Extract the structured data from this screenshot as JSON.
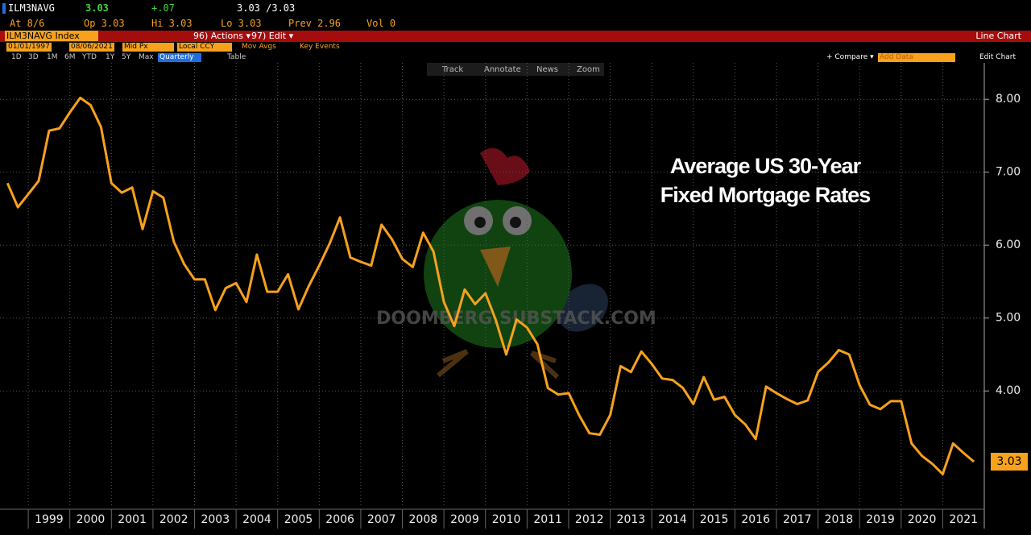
{
  "terminal": {
    "ticker": "ILM3NAVG",
    "last": "3.03",
    "change": "+.07",
    "bid_ask": "3.03 /3.03",
    "at": "At 8/6",
    "open": "Op 3.03",
    "high": "Hi 3.03",
    "low": "Lo 3.03",
    "prev": "Prev 2.96",
    "vol": "Vol 0",
    "security": "ILM3NAVG Index",
    "actions": "96) Actions ▾",
    "edit": "97) Edit ▾",
    "view": "Line Chart",
    "start_date": "01/01/1997",
    "end_date": "08/06/2021",
    "price_field": "Mid Px",
    "currency": "Local CCY",
    "mov_avgs": "Mov Avgs",
    "key_events": "Key Events",
    "ranges": [
      "1D",
      "3D",
      "1M",
      "6M",
      "YTD",
      "1Y",
      "5Y",
      "Max"
    ],
    "period": "Quarterly ▼",
    "table": "Table",
    "compare": "+ Compare ▾",
    "add_data": "Add Data",
    "edit_chart": "Edit Chart",
    "tools": [
      "Track",
      "Annotate",
      "News",
      "Zoom"
    ],
    "watermark": "DOOMBERG.SUBSTACK.COM"
  },
  "chart_data": {
    "type": "line",
    "title": [
      "Average US 30-Year",
      "Fixed Mortgage Rates"
    ],
    "color": "#f7a11c",
    "x": [
      1998.5,
      1998.75,
      1999,
      1999.25,
      1999.5,
      1999.75,
      2000,
      2000.25,
      2000.5,
      2000.75,
      2001,
      2001.25,
      2001.5,
      2001.75,
      2002,
      2002.25,
      2002.5,
      2002.75,
      2003,
      2003.25,
      2003.5,
      2003.75,
      2004,
      2004.25,
      2004.5,
      2004.75,
      2005,
      2005.25,
      2005.5,
      2005.75,
      2006,
      2006.25,
      2006.5,
      2006.75,
      2007,
      2007.25,
      2007.5,
      2007.75,
      2008,
      2008.25,
      2008.5,
      2008.75,
      2009,
      2009.25,
      2009.5,
      2009.75,
      2010,
      2010.25,
      2010.5,
      2010.75,
      2011,
      2011.25,
      2011.5,
      2011.75,
      2012,
      2012.25,
      2012.5,
      2012.75,
      2013,
      2013.25,
      2013.5,
      2013.75,
      2014,
      2014.25,
      2014.5,
      2014.75,
      2015,
      2015.25,
      2015.5,
      2015.75,
      2016,
      2016.25,
      2016.5,
      2016.75,
      2017,
      2017.25,
      2017.5,
      2017.75,
      2018,
      2018.25,
      2018.5,
      2018.75,
      2019,
      2019.25,
      2019.5,
      2019.75,
      2020,
      2020.25,
      2020.5,
      2020.75,
      2021,
      2021.25,
      2021.5,
      2021.75
    ],
    "values": [
      6.85,
      6.52,
      6.7,
      6.88,
      7.57,
      7.6,
      7.82,
      8.02,
      7.92,
      7.62,
      6.85,
      6.72,
      6.79,
      6.22,
      6.74,
      6.65,
      6.05,
      5.74,
      5.53,
      5.53,
      5.11,
      5.41,
      5.48,
      5.22,
      5.87,
      5.36,
      5.36,
      5.6,
      5.12,
      5.44,
      5.72,
      6.02,
      6.38,
      5.83,
      5.77,
      5.72,
      6.28,
      6.08,
      5.81,
      5.7,
      6.17,
      5.91,
      5.22,
      4.89,
      5.39,
      5.19,
      5.34,
      4.97,
      4.5,
      4.98,
      4.87,
      4.64,
      4.04,
      3.95,
      3.97,
      3.67,
      3.42,
      3.4,
      3.67,
      4.34,
      4.26,
      4.54,
      4.37,
      4.17,
      4.15,
      4.04,
      3.82,
      4.19,
      3.88,
      3.92,
      3.67,
      3.54,
      3.34,
      4.06,
      3.97,
      3.89,
      3.82,
      3.87,
      4.26,
      4.39,
      4.56,
      4.5,
      4.08,
      3.81,
      3.75,
      3.86,
      3.86,
      3.28,
      3.11,
      3.0,
      2.86,
      3.28,
      3.15,
      3.03
    ],
    "current_label": "3.03",
    "xlim": [
      1998.32,
      2022.0
    ],
    "xticks": [
      1999,
      2000,
      2001,
      2002,
      2003,
      2004,
      2005,
      2006,
      2007,
      2008,
      2009,
      2010,
      2011,
      2012,
      2013,
      2014,
      2015,
      2016,
      2017,
      2018,
      2019,
      2020,
      2021
    ],
    "ylim": [
      2.4,
      8.5
    ],
    "yticks": [
      {
        "value": 8,
        "label": "8.00"
      },
      {
        "value": 7,
        "label": "7.00"
      },
      {
        "value": 6,
        "label": "6.00"
      },
      {
        "value": 5,
        "label": "5.00"
      },
      {
        "value": 4,
        "label": "4.00"
      }
    ],
    "grid": true
  }
}
